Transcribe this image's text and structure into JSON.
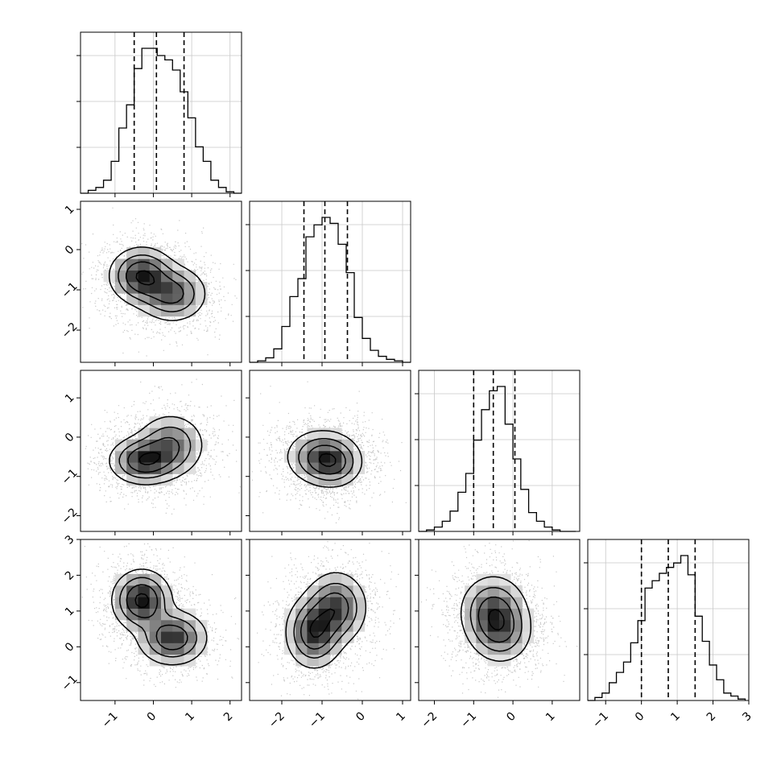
{
  "chart_data": {
    "type": "corner",
    "grid": true,
    "variables": [
      {
        "ticks": [
          -1,
          0,
          1,
          2
        ],
        "range": [
          -1.9,
          2.3
        ],
        "quantiles": [
          -0.5,
          0.08,
          0.8
        ],
        "hist_edges": [
          -1.9,
          -1.7,
          -1.5,
          -1.3,
          -1.1,
          -0.9,
          -0.7,
          -0.5,
          -0.3,
          -0.1,
          0.1,
          0.3,
          0.5,
          0.7,
          0.9,
          1.1,
          1.3,
          1.5,
          1.7,
          1.9,
          2.1,
          2.3
        ],
        "hist_counts": [
          0.0,
          0.02,
          0.04,
          0.09,
          0.22,
          0.45,
          0.61,
          0.86,
          1.0,
          1.0,
          0.95,
          0.92,
          0.85,
          0.7,
          0.52,
          0.32,
          0.22,
          0.09,
          0.04,
          0.01,
          0.0
        ]
      },
      {
        "ticks": [
          -2,
          -1,
          0,
          1
        ],
        "range": [
          -2.8,
          1.2
        ],
        "quantiles": [
          -1.45,
          -0.93,
          -0.37
        ],
        "hist_edges": [
          -2.8,
          -2.6,
          -2.4,
          -2.2,
          -2.0,
          -1.8,
          -1.6,
          -1.4,
          -1.2,
          -1.0,
          -0.8,
          -0.6,
          -0.4,
          -0.2,
          0.0,
          0.2,
          0.4,
          0.6,
          0.8,
          1.0,
          1.2
        ],
        "hist_counts": [
          0.0,
          0.01,
          0.03,
          0.09,
          0.24,
          0.44,
          0.56,
          0.84,
          0.92,
          0.97,
          0.93,
          0.79,
          0.6,
          0.3,
          0.16,
          0.08,
          0.04,
          0.02,
          0.01,
          0.0
        ]
      },
      {
        "ticks": [
          -2,
          -1,
          0,
          1
        ],
        "range": [
          -2.4,
          1.7
        ],
        "quantiles": [
          -1.0,
          -0.5,
          0.05
        ],
        "hist_edges": [
          -2.4,
          -2.2,
          -2.0,
          -1.8,
          -1.6,
          -1.4,
          -1.2,
          -1.0,
          -0.8,
          -0.6,
          -0.4,
          -0.2,
          0.0,
          0.2,
          0.4,
          0.6,
          0.8,
          1.0,
          1.2,
          1.4,
          1.6
        ],
        "hist_counts": [
          0.0,
          0.01,
          0.03,
          0.07,
          0.14,
          0.27,
          0.4,
          0.63,
          0.84,
          0.97,
          1.0,
          0.74,
          0.5,
          0.29,
          0.13,
          0.07,
          0.03,
          0.01,
          0.0,
          0.0
        ]
      },
      {
        "ticks": [
          -1,
          0,
          1,
          2,
          3
        ],
        "range": [
          -1.5,
          3.0
        ],
        "quantiles": [
          0.0,
          0.75,
          1.5
        ],
        "hist_edges": [
          -1.5,
          -1.3,
          -1.1,
          -0.9,
          -0.7,
          -0.5,
          -0.3,
          -0.1,
          0.1,
          0.3,
          0.5,
          0.7,
          0.9,
          1.1,
          1.3,
          1.5,
          1.7,
          1.9,
          2.1,
          2.3,
          2.5,
          2.7,
          2.9
        ],
        "hist_counts": [
          0.0,
          0.02,
          0.05,
          0.12,
          0.19,
          0.26,
          0.39,
          0.54,
          0.76,
          0.81,
          0.86,
          0.9,
          0.93,
          0.98,
          0.85,
          0.57,
          0.4,
          0.24,
          0.14,
          0.05,
          0.03,
          0.01
        ]
      }
    ],
    "pairs": [
      {
        "row": 1,
        "col": 0,
        "blobs": [
          {
            "cx": -0.3,
            "cy": -0.65,
            "sx": 0.42,
            "sy": 0.35,
            "w": 1.0
          },
          {
            "cx": 0.5,
            "cy": -1.1,
            "sx": 0.45,
            "sy": 0.35,
            "w": 0.75
          }
        ]
      },
      {
        "row": 2,
        "col": 0,
        "blobs": [
          {
            "cx": -0.25,
            "cy": -0.6,
            "sx": 0.45,
            "sy": 0.3,
            "w": 1.0
          },
          {
            "cx": 0.45,
            "cy": -0.2,
            "sx": 0.45,
            "sy": 0.4,
            "w": 0.7
          }
        ]
      },
      {
        "row": 2,
        "col": 1,
        "blobs": [
          {
            "cx": -1.0,
            "cy": -0.5,
            "sx": 0.45,
            "sy": 0.35,
            "w": 1.0
          },
          {
            "cx": -0.7,
            "cy": -0.7,
            "sx": 0.35,
            "sy": 0.3,
            "w": 0.6
          }
        ]
      },
      {
        "row": 3,
        "col": 0,
        "blobs": [
          {
            "cx": -0.3,
            "cy": 1.3,
            "sx": 0.38,
            "sy": 0.42,
            "w": 1.0
          },
          {
            "cx": 0.5,
            "cy": 0.25,
            "sx": 0.45,
            "sy": 0.38,
            "w": 0.85
          }
        ]
      },
      {
        "row": 3,
        "col": 1,
        "blobs": [
          {
            "cx": -1.2,
            "cy": 0.4,
            "sx": 0.35,
            "sy": 0.5,
            "w": 1.0
          },
          {
            "cx": -0.65,
            "cy": 1.1,
            "sx": 0.38,
            "sy": 0.5,
            "w": 0.9
          }
        ]
      },
      {
        "row": 3,
        "col": 2,
        "blobs": [
          {
            "cx": -0.5,
            "cy": 1.0,
            "sx": 0.42,
            "sy": 0.5,
            "w": 1.0
          },
          {
            "cx": -0.3,
            "cy": 0.4,
            "sx": 0.4,
            "sy": 0.45,
            "w": 0.7
          }
        ]
      }
    ]
  }
}
